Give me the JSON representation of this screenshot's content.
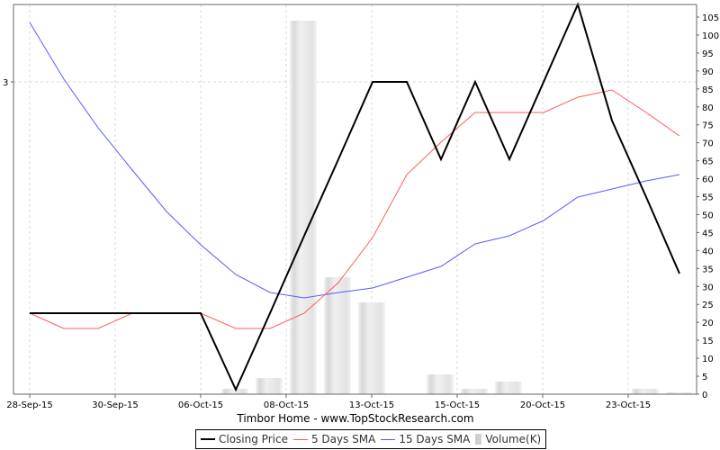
{
  "chart_data": {
    "type": "line",
    "title": "Timbor Home - www.TopStockResearch.com",
    "xlabel": "",
    "ylabel_left": "",
    "ylabel_right": "",
    "x_tick_labels": [
      "28-Sep-15",
      "30-Sep-15",
      "06-Oct-15",
      "08-Oct-15",
      "13-Oct-15",
      "15-Oct-15",
      "20-Oct-15",
      "23-Oct-15"
    ],
    "left_axis": {
      "tick_labels": [
        "3"
      ]
    },
    "right_axis": {
      "ylim": [
        0,
        105
      ],
      "tick_labels": [
        "0",
        "5",
        "10",
        "15",
        "20",
        "25",
        "30",
        "35",
        "40",
        "45",
        "50",
        "55",
        "60",
        "65",
        "70",
        "75",
        "80",
        "85",
        "90",
        "95",
        "100",
        "105"
      ]
    },
    "grid": true,
    "legend_position": "bottom",
    "x": [
      "28-Sep-15",
      "29-Sep-15",
      "30-Sep-15",
      "01-Oct-15",
      "02-Oct-15",
      "05-Oct-15",
      "06-Oct-15",
      "07-Oct-15",
      "08-Oct-15",
      "09-Oct-15",
      "12-Oct-15",
      "13-Oct-15",
      "14-Oct-15",
      "15-Oct-15",
      "16-Oct-15",
      "19-Oct-15",
      "20-Oct-15",
      "21-Oct-15",
      "22-Oct-15",
      "23-Oct-15",
      "26-Oct-15"
    ],
    "series": [
      {
        "name": "Closing Price",
        "axis": "left",
        "color": "#000000",
        "values": [
          2.7,
          2.7,
          2.7,
          2.7,
          2.7,
          2.7,
          2.7,
          2.52,
          2.7,
          2.88,
          3.0,
          3.0,
          2.9,
          3.0,
          2.9,
          3.0,
          3.1,
          2.93,
          2.82,
          null,
          null
        ]
      },
      {
        "name": "5 Days SMA",
        "axis": "left",
        "color": "#ff5555",
        "values": [
          2.7,
          2.68,
          2.68,
          2.7,
          2.7,
          2.7,
          2.68,
          2.68,
          2.7,
          2.74,
          2.82,
          2.9,
          2.95,
          2.95,
          2.95,
          2.97,
          2.98,
          2.93,
          null,
          null,
          null
        ]
      },
      {
        "name": "15 Days SMA",
        "axis": "left",
        "color": "#5555ff",
        "values": [
          3.05,
          3.0,
          2.95,
          2.9,
          2.85,
          2.8,
          2.77,
          2.75,
          2.74,
          2.75,
          2.76,
          2.78,
          2.81,
          2.82,
          2.84,
          2.87,
          2.88,
          2.9,
          null,
          null,
          null
        ]
      },
      {
        "name": "Volume(K)",
        "axis": "right",
        "color": "#d0d0d0",
        "type": "bar",
        "values": [
          0,
          0,
          0,
          0,
          0,
          0,
          0,
          2,
          5,
          104,
          33,
          26,
          0,
          6,
          2,
          4,
          0,
          0,
          2,
          1,
          0
        ]
      }
    ]
  },
  "legend": {
    "items": [
      {
        "label": "Closing Price",
        "color": "#000000"
      },
      {
        "label": "5 Days SMA",
        "color": "#ff5555"
      },
      {
        "label": "15 Days SMA",
        "color": "#5555ff"
      },
      {
        "label": "Volume(K)",
        "color": "#d0d0d0"
      }
    ]
  }
}
